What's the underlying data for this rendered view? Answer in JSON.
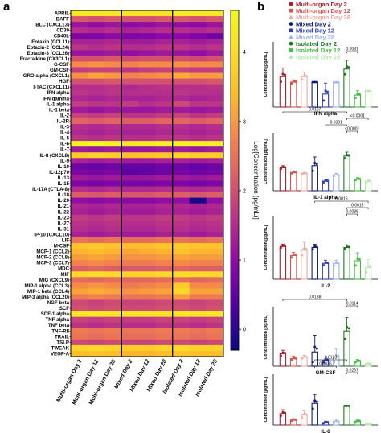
{
  "panel_a_label": "a",
  "panel_b_label": "b",
  "chart_data": [
    {
      "type": "heatmap",
      "panel": "a",
      "colorbar_label": "Log[Concentration (pg/mL)]",
      "colorbar_ticks": [
        "0",
        "1",
        "2",
        "3",
        "4"
      ],
      "zlim": [
        -0.3,
        4.6
      ],
      "columns": [
        "Multi-organ Day 2",
        "Multi-organ Day 12",
        "Multi-organ Day 28",
        "Mixed Day 2",
        "Mixed Day 12",
        "Mixed Day 28",
        "Isolated Day 2",
        "Isolated Day 12",
        "Isolated Day 28"
      ],
      "rows": [
        "APRIL",
        "BAFF",
        "BLC (CXCL13)",
        "CD30",
        "CD40L",
        "Eotaxin (CCL11)",
        "Eotaxin-2 (CCL24)",
        "Eotaxin-3 (CCL26)",
        "Fractalkine (CX3CL1)",
        "G-CSF",
        "GM-CSF",
        "GRO alpha (CXCL1)",
        "HGF",
        "I-TAC (CXCL11)",
        "IFN alpha",
        "IFN gamma",
        "IL-1 alpha",
        "IL-1 beta",
        "IL-2",
        "IL-2R",
        "IL-3",
        "IL-4",
        "IL-5",
        "IL-6",
        "IL-7",
        "IL-8 (CXCL8)",
        "IL-9",
        "IL-10",
        "IL-12p70",
        "IL-13",
        "IL-15",
        "IL-17A (CTLA-8)",
        "IL-18",
        "IL-20",
        "IL-21",
        "IL-22",
        "IL-23",
        "IL-27",
        "IL-31",
        "IP-10 (CXCL10)",
        "LIF",
        "M-CSF",
        "MCP-1 (CCL2)",
        "MCP-2 (CCL8)",
        "MCP-3 (CCL7)",
        "MDC",
        "MIF",
        "MIG (CXCL9)",
        "MIP-1 alpha (CCL3)",
        "MIP-1 beta (CCL4)",
        "MIP-3 alpha (CCL20)",
        "NGF beta",
        "SCF",
        "SDF-1 alpha",
        "TNF alpha",
        "TNF beta",
        "TNF-RII",
        "TRAIL",
        "TSLP",
        "TWEAK",
        "VEGF-A"
      ],
      "values": [
        [
          4.2,
          4.2,
          4.2,
          4.1,
          4.1,
          4.1,
          4.2,
          4.2,
          4.2
        ],
        [
          2.1,
          2.0,
          2.1,
          2.0,
          2.0,
          2.1,
          2.1,
          2.0,
          2.1
        ],
        [
          1.1,
          1.0,
          1.1,
          0.9,
          1.0,
          1.1,
          1.0,
          0.9,
          1.1
        ],
        [
          1.5,
          1.4,
          1.5,
          1.3,
          1.4,
          1.5,
          1.5,
          1.4,
          1.5
        ],
        [
          0.8,
          0.8,
          0.9,
          0.8,
          0.8,
          0.9,
          0.9,
          0.8,
          0.6
        ],
        [
          1.3,
          1.3,
          1.4,
          1.2,
          1.2,
          1.3,
          1.3,
          1.2,
          1.3
        ],
        [
          1.6,
          1.5,
          1.6,
          1.5,
          1.5,
          1.6,
          1.6,
          1.5,
          1.6
        ],
        [
          1.1,
          1.1,
          1.2,
          1.0,
          1.1,
          1.2,
          1.1,
          1.0,
          1.2
        ],
        [
          2.0,
          2.0,
          2.1,
          1.9,
          2.0,
          2.0,
          2.0,
          1.9,
          2.0
        ],
        [
          2.8,
          2.9,
          2.8,
          2.7,
          2.8,
          2.8,
          2.9,
          2.8,
          2.8
        ],
        [
          1.7,
          1.8,
          1.8,
          1.6,
          1.7,
          1.8,
          1.8,
          1.7,
          1.7
        ],
        [
          2.9,
          3.1,
          3.0,
          2.7,
          2.8,
          2.9,
          3.2,
          3.0,
          3.0
        ],
        [
          2.0,
          2.0,
          2.1,
          2.0,
          2.0,
          2.0,
          2.0,
          2.0,
          2.1
        ],
        [
          1.5,
          1.5,
          1.6,
          1.4,
          1.5,
          1.6,
          1.5,
          1.5,
          1.6
        ],
        [
          1.6,
          1.5,
          1.6,
          1.5,
          1.5,
          1.5,
          1.6,
          1.5,
          1.5
        ],
        [
          1.4,
          1.3,
          1.4,
          1.3,
          1.3,
          1.4,
          1.4,
          1.3,
          1.4
        ],
        [
          1.7,
          1.6,
          1.6,
          1.7,
          1.5,
          1.6,
          1.9,
          1.6,
          1.6
        ],
        [
          1.2,
          1.1,
          1.2,
          1.1,
          1.1,
          1.2,
          1.2,
          1.1,
          1.2
        ],
        [
          1.8,
          1.7,
          1.8,
          1.6,
          1.6,
          1.7,
          1.8,
          1.6,
          1.7
        ],
        [
          2.3,
          2.2,
          2.3,
          2.2,
          2.2,
          2.3,
          2.3,
          2.2,
          2.3
        ],
        [
          1.5,
          1.4,
          1.5,
          1.4,
          1.4,
          1.5,
          1.5,
          1.4,
          1.5
        ],
        [
          1.4,
          1.3,
          1.4,
          1.3,
          1.3,
          1.4,
          1.4,
          1.3,
          1.4
        ],
        [
          1.6,
          1.5,
          1.6,
          1.5,
          1.5,
          1.6,
          1.6,
          1.5,
          1.6
        ],
        [
          4.5,
          4.6,
          4.5,
          4.2,
          4.3,
          4.4,
          4.5,
          4.4,
          4.4
        ],
        [
          1.2,
          1.1,
          1.2,
          1.1,
          1.1,
          1.2,
          1.2,
          1.1,
          1.2
        ],
        [
          3.6,
          3.8,
          3.7,
          3.4,
          3.5,
          3.6,
          3.8,
          3.7,
          3.7
        ],
        [
          1.3,
          1.2,
          1.3,
          1.2,
          1.2,
          1.3,
          1.3,
          1.2,
          1.3
        ],
        [
          0.6,
          0.5,
          0.6,
          0.5,
          0.5,
          0.6,
          0.6,
          0.5,
          0.6
        ],
        [
          0.8,
          0.7,
          0.8,
          0.4,
          0.5,
          0.6,
          0.7,
          0.6,
          0.7
        ],
        [
          1.2,
          1.1,
          1.2,
          1.1,
          1.1,
          1.2,
          1.2,
          1.1,
          1.2
        ],
        [
          0.8,
          0.7,
          0.8,
          0.7,
          0.7,
          0.8,
          0.8,
          0.7,
          0.8
        ],
        [
          1.5,
          1.4,
          1.5,
          1.4,
          1.4,
          1.5,
          1.5,
          1.4,
          1.5
        ],
        [
          2.2,
          2.1,
          2.2,
          2.1,
          2.1,
          2.2,
          2.2,
          2.1,
          2.2
        ],
        [
          1.0,
          0.9,
          1.0,
          0.9,
          0.9,
          1.0,
          1.0,
          -0.2,
          1.0
        ],
        [
          1.4,
          1.3,
          1.4,
          1.3,
          1.3,
          1.4,
          1.4,
          1.3,
          1.4
        ],
        [
          1.3,
          1.2,
          1.3,
          1.2,
          1.2,
          1.3,
          1.3,
          1.2,
          1.3
        ],
        [
          1.7,
          1.6,
          1.7,
          1.6,
          1.6,
          1.7,
          1.7,
          1.6,
          1.7
        ],
        [
          1.6,
          1.5,
          1.6,
          1.5,
          1.5,
          1.6,
          1.6,
          1.5,
          1.6
        ],
        [
          1.5,
          1.4,
          1.5,
          1.4,
          1.4,
          1.5,
          1.5,
          1.4,
          1.5
        ],
        [
          1.3,
          1.2,
          1.3,
          1.2,
          1.2,
          1.3,
          1.3,
          1.2,
          1.3
        ],
        [
          2.5,
          2.4,
          2.5,
          2.4,
          2.4,
          2.5,
          2.5,
          2.4,
          2.5
        ],
        [
          3.5,
          3.6,
          3.5,
          3.4,
          3.4,
          3.5,
          3.6,
          3.5,
          3.5
        ],
        [
          3.3,
          3.4,
          3.3,
          3.1,
          3.2,
          3.3,
          3.5,
          3.3,
          3.3
        ],
        [
          3.0,
          3.1,
          3.0,
          2.9,
          2.9,
          3.0,
          3.1,
          3.0,
          3.0
        ],
        [
          2.7,
          2.8,
          2.7,
          2.6,
          2.6,
          2.7,
          2.8,
          2.7,
          2.7
        ],
        [
          2.2,
          2.3,
          2.2,
          2.1,
          2.1,
          2.2,
          2.3,
          2.2,
          2.2
        ],
        [
          3.9,
          4.0,
          3.9,
          3.8,
          3.8,
          3.9,
          4.0,
          3.9,
          3.9
        ],
        [
          2.4,
          2.3,
          2.4,
          2.3,
          2.3,
          2.4,
          2.4,
          2.3,
          2.4
        ],
        [
          2.8,
          2.9,
          2.8,
          2.6,
          2.7,
          2.8,
          3.6,
          2.8,
          2.8
        ],
        [
          3.1,
          3.2,
          3.1,
          2.9,
          3.0,
          3.1,
          3.9,
          3.1,
          3.1
        ],
        [
          2.6,
          2.7,
          2.6,
          2.5,
          2.5,
          2.6,
          3.0,
          2.6,
          2.6
        ],
        [
          1.9,
          1.8,
          1.9,
          1.8,
          1.8,
          1.9,
          1.9,
          1.8,
          1.9
        ],
        [
          2.0,
          1.9,
          2.0,
          1.9,
          1.9,
          2.0,
          2.0,
          1.9,
          2.0
        ],
        [
          4.2,
          4.2,
          4.2,
          4.1,
          4.1,
          4.1,
          4.2,
          4.1,
          4.2
        ],
        [
          1.8,
          1.7,
          1.8,
          1.7,
          1.7,
          1.8,
          1.8,
          1.7,
          1.8
        ],
        [
          1.6,
          1.5,
          1.6,
          1.5,
          1.5,
          1.6,
          1.6,
          1.5,
          1.6
        ],
        [
          2.6,
          2.5,
          2.6,
          2.5,
          2.5,
          2.6,
          2.6,
          2.5,
          2.6
        ],
        [
          2.5,
          2.4,
          2.5,
          2.4,
          2.4,
          2.5,
          2.5,
          2.4,
          2.5
        ],
        [
          1.9,
          1.8,
          1.9,
          1.8,
          1.8,
          1.9,
          1.9,
          1.8,
          1.9
        ],
        [
          3.8,
          3.9,
          3.8,
          3.7,
          3.7,
          3.8,
          3.9,
          3.8,
          3.8
        ],
        [
          3.4,
          3.5,
          3.4,
          3.3,
          3.3,
          3.4,
          3.5,
          3.4,
          3.4
        ]
      ],
      "column_dividers_after": [
        2,
        5
      ]
    },
    {
      "type": "bar",
      "panel": "b",
      "legend": [
        {
          "name": "Multi-organ Day 2",
          "color": "#b2182b",
          "marker": "circle"
        },
        {
          "name": "Multi-organ Day 12",
          "color": "#e0514a",
          "marker": "square"
        },
        {
          "name": "Multi-organ Day 28",
          "color": "#f4a6a0",
          "marker": "triangle"
        },
        {
          "name": "Mixed Day 2",
          "color": "#0d1a7a",
          "marker": "circle"
        },
        {
          "name": "Mixed Day 12",
          "color": "#2b3ec2",
          "marker": "square"
        },
        {
          "name": "Mixed Day 28",
          "color": "#9bb4ef",
          "marker": "triangle"
        },
        {
          "name": "Isolated Day 2",
          "color": "#1a7a1a",
          "marker": "circle"
        },
        {
          "name": "Isolated Day 12",
          "color": "#3fbf3f",
          "marker": "square"
        },
        {
          "name": "Isolated Day 28",
          "color": "#b7e6b0",
          "marker": "triangle"
        }
      ],
      "categories": [
        "Multi-organ Day 2",
        "Multi-organ Day 12",
        "Multi-organ Day 28",
        "Mixed Day 2",
        "Mixed Day 12",
        "Mixed Day 28",
        "Isolated Day 2",
        "Isolated Day 12",
        "Isolated Day 28"
      ],
      "subplots": [
        {
          "title": "IFN alpha",
          "ylabel": "Concentration [pg/mL]",
          "ylim": [
            0,
            60
          ],
          "values": [
            28,
            23,
            28,
            23,
            12,
            23,
            35,
            11,
            15
          ],
          "errors": [
            8,
            2,
            4,
            0,
            10,
            0,
            8,
            4,
            0
          ],
          "pvalues": [
            {
              "from": 6,
              "to": 7,
              "label": "0.0081"
            }
          ]
        },
        {
          "title": "IL-1 alpha",
          "ylabel": "Concentration [pg/mL]",
          "ylim": [
            0,
            120
          ],
          "values": [
            48,
            38,
            36,
            52,
            20,
            33,
            72,
            24,
            20
          ],
          "errors": [
            4,
            3,
            2,
            18,
            4,
            3,
            8,
            3,
            3
          ],
          "pvalues": [
            {
              "from": 0,
              "to": 6,
              "label": "0.0137"
            },
            {
              "from": 6,
              "to": 8,
              "label": "<0.0001"
            },
            {
              "from": 4,
              "to": 6,
              "label": "0.0391"
            },
            {
              "from": 6,
              "to": 7,
              "label": "<0.0001"
            }
          ]
        },
        {
          "title": "IL-2",
          "ylabel": "Concentration [pg/mL]",
          "ylim": [
            0,
            120
          ],
          "values": [
            62,
            45,
            55,
            60,
            30,
            30,
            60,
            35,
            22
          ],
          "errors": [
            4,
            6,
            15,
            6,
            6,
            6,
            5,
            15,
            15
          ],
          "pvalues": [
            {
              "from": 3,
              "to": 8,
              "label": "0.0015"
            },
            {
              "from": 6,
              "to": 8,
              "label": "0.0015"
            },
            {
              "from": 6,
              "to": 7,
              "label": "0.0088"
            }
          ]
        },
        {
          "title": "GM-CSF",
          "ylabel": "Concentration [pg/mL]",
          "ylim": [
            0,
            700
          ],
          "values": [
            150,
            90,
            110,
            170,
            70,
            110,
            420,
            60,
            30
          ],
          "errors": [
            40,
            30,
            20,
            200,
            40,
            100,
            160,
            20,
            10
          ],
          "pvalues": [
            {
              "from": 0,
              "to": 6,
              "label": "0.0138"
            },
            {
              "from": 6,
              "to": 7,
              "label": "0.0114"
            }
          ]
        },
        {
          "title": "IL-6",
          "ylabel": "Concentration [pg/mL]",
          "ylim": [
            0,
            40000
          ],
          "values": [
            9000,
            4000,
            8000,
            17000,
            2000,
            3000,
            15000,
            3000,
            1000
          ],
          "errors": [
            3000,
            1000,
            3000,
            7000,
            1000,
            1500,
            0,
            1000,
            500
          ],
          "pvalues": [
            {
              "from": 3,
              "to": 6,
              "label": "0.0123"
            },
            {
              "from": 3,
              "to": 5,
              "label": "0.0036"
            },
            {
              "from": 6,
              "to": 7,
              "label": "0.0267"
            }
          ]
        }
      ]
    }
  ]
}
